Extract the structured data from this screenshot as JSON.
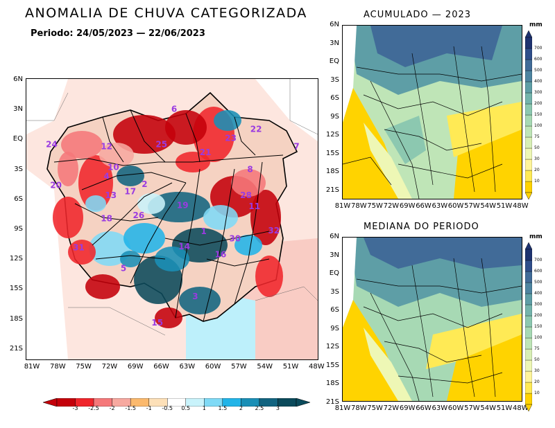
{
  "title": "ANOMALIA DE CHUVA CATEGORIZADA",
  "period": "Periodo: 24/05/2023 — 22/06/2023",
  "panel_top": "ACUMULADO — 2023",
  "panel_bottom": "MEDIANA DO PERIODO",
  "units": "mm",
  "lat_labels_main": [
    "6N",
    "3N",
    "EQ",
    "3S",
    "6S",
    "9S",
    "12S",
    "15S",
    "18S",
    "21S"
  ],
  "lon_labels_main": [
    "81W",
    "78W",
    "75W",
    "72W",
    "69W",
    "66W",
    "63W",
    "60W",
    "57W",
    "54W",
    "51W",
    "48W"
  ],
  "lat_labels_small": [
    "6N",
    "3N",
    "EQ",
    "3S",
    "6S",
    "9S",
    "12S",
    "15S",
    "18S",
    "21S"
  ],
  "lon_labels_small": [
    "81W",
    "78W",
    "75W",
    "72W",
    "69W",
    "66W",
    "63W",
    "60W",
    "57W",
    "54W",
    "51W",
    "48W"
  ],
  "anomaly_legend": {
    "labels": [
      "-3",
      "-2.5",
      "-2",
      "-1.5",
      "-1",
      "-0.5",
      "0.5",
      "1",
      "1.5",
      "2",
      "2.5",
      "3"
    ],
    "colors": [
      "#c4000a",
      "#f0252b",
      "#f5787a",
      "#f7a9a0",
      "#fbb96d",
      "#fde0b8",
      "#ffffff",
      "#c9f3fb",
      "#7fdaf6",
      "#22b4e8",
      "#1a8fb6",
      "#126480",
      "#0b4a5b"
    ]
  },
  "mm_legend": {
    "labels": [
      "10",
      "20",
      "30",
      "50",
      "75",
      "100",
      "150",
      "200",
      "300",
      "400",
      "500",
      "600",
      "700"
    ],
    "colors": [
      "#ffd300",
      "#ffea55",
      "#fff59b",
      "#eef7b5",
      "#d8efb6",
      "#bfe5b7",
      "#a7d9b4",
      "#8cc8b0",
      "#74b4ac",
      "#5e9ea6",
      "#4d84a0",
      "#416b98",
      "#2f4e8a",
      "#1e3370"
    ]
  },
  "basin_labels": [
    {
      "text": "6",
      "lon": -64.5,
      "lat": 2.8
    },
    {
      "text": "22",
      "lon": -54.8,
      "lat": 0.8
    },
    {
      "text": "24",
      "lon": -79.0,
      "lat": -0.7
    },
    {
      "text": "12",
      "lon": -72.5,
      "lat": -0.9
    },
    {
      "text": "25",
      "lon": -66.0,
      "lat": -0.7
    },
    {
      "text": "23",
      "lon": -57.8,
      "lat": -0.1
    },
    {
      "text": "7",
      "lon": -50.0,
      "lat": -0.9
    },
    {
      "text": "21",
      "lon": -60.8,
      "lat": -1.5
    },
    {
      "text": "10",
      "lon": -71.7,
      "lat": -3.0
    },
    {
      "text": "8",
      "lon": -55.5,
      "lat": -3.2
    },
    {
      "text": "4",
      "lon": -72.5,
      "lat": -3.9
    },
    {
      "text": "20",
      "lon": -78.5,
      "lat": -4.8
    },
    {
      "text": "17",
      "lon": -69.7,
      "lat": -5.4
    },
    {
      "text": "2",
      "lon": -68.0,
      "lat": -4.7
    },
    {
      "text": "13",
      "lon": -72.0,
      "lat": -5.8
    },
    {
      "text": "28",
      "lon": -56.0,
      "lat": -5.8
    },
    {
      "text": "19",
      "lon": -63.5,
      "lat": -6.8
    },
    {
      "text": "11",
      "lon": -55.0,
      "lat": -6.9
    },
    {
      "text": "18",
      "lon": -72.5,
      "lat": -8.1
    },
    {
      "text": "26",
      "lon": -68.7,
      "lat": -7.8
    },
    {
      "text": "1",
      "lon": -61.0,
      "lat": -9.4
    },
    {
      "text": "32",
      "lon": -52.7,
      "lat": -9.3
    },
    {
      "text": "30",
      "lon": -57.3,
      "lat": -10.1
    },
    {
      "text": "31",
      "lon": -75.8,
      "lat": -11.0
    },
    {
      "text": "14",
      "lon": -63.3,
      "lat": -10.9
    },
    {
      "text": "16",
      "lon": -59.0,
      "lat": -11.7
    },
    {
      "text": "5",
      "lon": -70.5,
      "lat": -13.1
    },
    {
      "text": "3",
      "lon": -62.0,
      "lat": -15.9
    },
    {
      "text": "15",
      "lon": -66.5,
      "lat": -18.5
    }
  ]
}
